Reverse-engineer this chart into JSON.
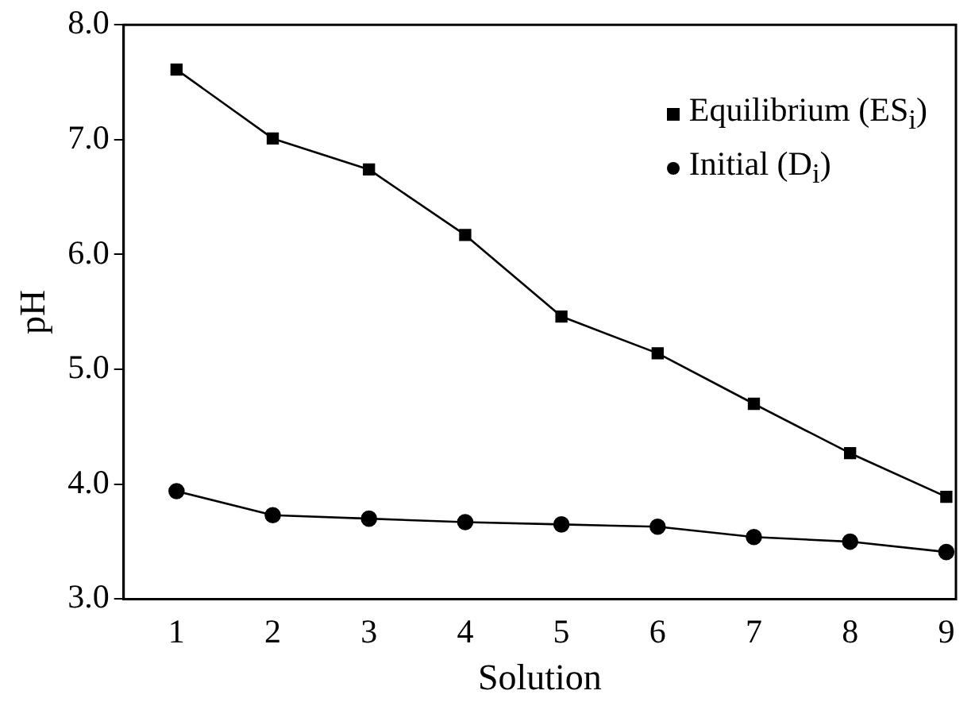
{
  "chart_data": {
    "type": "line",
    "xlabel": "Solution",
    "ylabel": "pH",
    "x": [
      1,
      2,
      3,
      4,
      5,
      6,
      7,
      8,
      9
    ],
    "series": [
      {
        "name": "Equilibrium (ES$_{i}$)",
        "color": "#000000",
        "marker": "square",
        "values": [
          7.61,
          7.01,
          6.74,
          6.17,
          5.46,
          5.14,
          4.7,
          4.27,
          3.89
        ]
      },
      {
        "name": "Initial (D$_{i}$)",
        "color": "#000000",
        "marker": "circle",
        "values": [
          3.94,
          3.73,
          3.7,
          3.67,
          3.65,
          3.63,
          3.54,
          3.5,
          3.41
        ]
      }
    ],
    "xlim": [
      0.45,
      9.1
    ],
    "xticks": [
      1,
      2,
      3,
      4,
      5,
      6,
      7,
      8,
      9
    ],
    "ylim": [
      3,
      8
    ],
    "yticks": [
      {
        "value": 3,
        "label": "3.0"
      },
      {
        "value": 4,
        "label": "4.0"
      },
      {
        "value": 5,
        "label": "5.0"
      },
      {
        "value": 6,
        "label": "6.0"
      },
      {
        "value": 7,
        "label": "7.0"
      },
      {
        "value": 8,
        "label": "8.0"
      }
    ],
    "grid": false,
    "legend": "top right",
    "line_style": "solid"
  }
}
